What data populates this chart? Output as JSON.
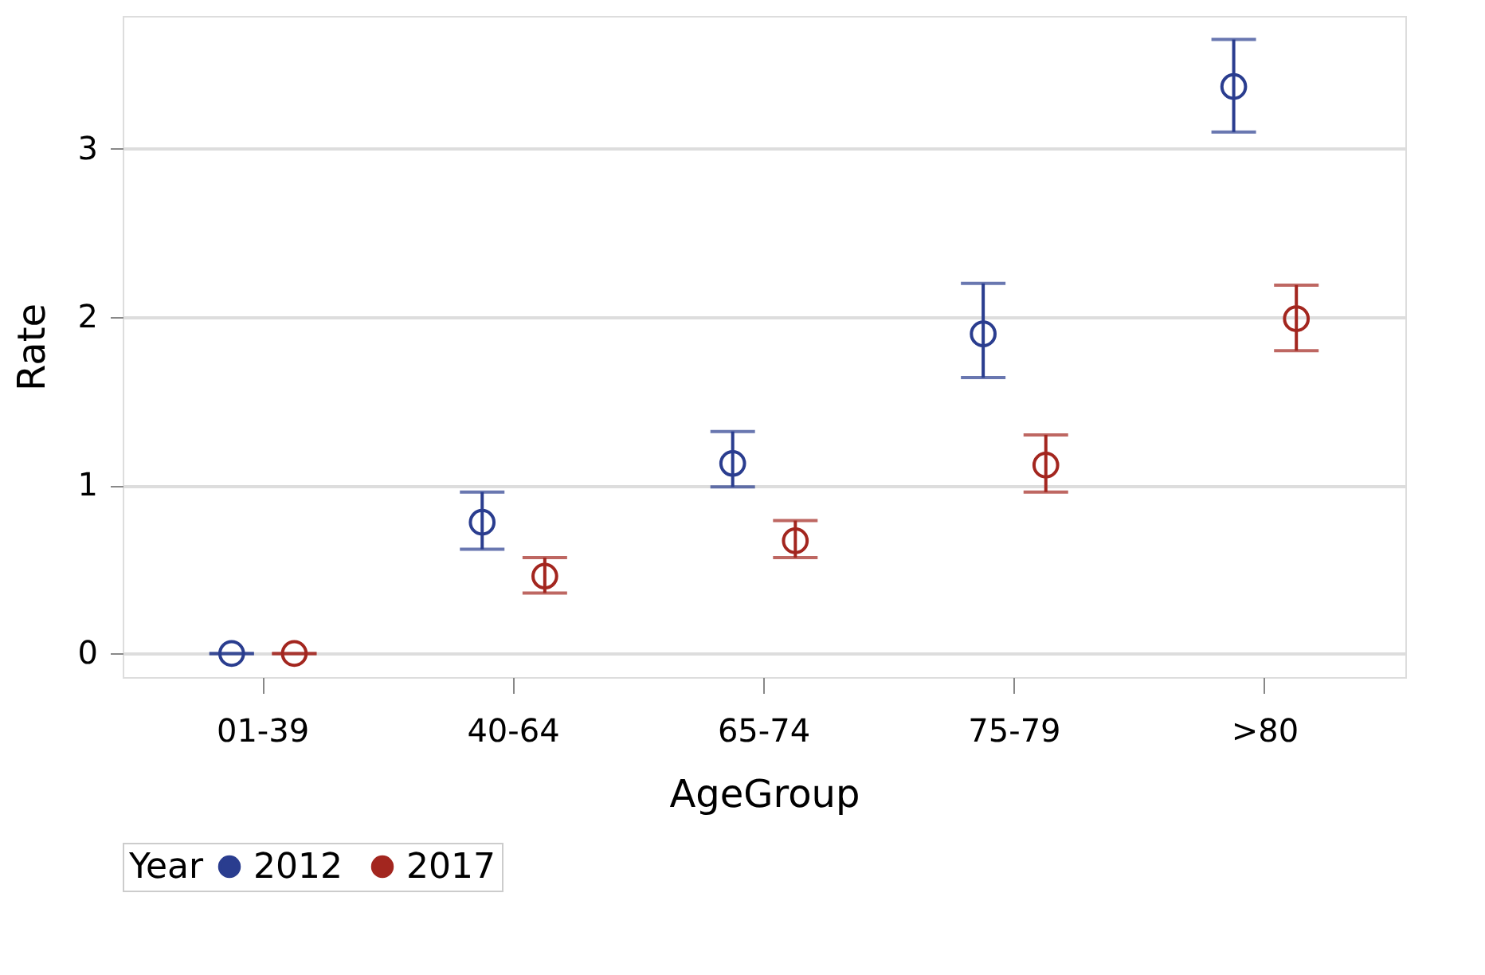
{
  "chart_data": {
    "type": "scatter",
    "xlabel": "AgeGroup",
    "ylabel": "Rate",
    "legend_title": "Year",
    "categories": [
      "01-39",
      "40-64",
      "65-74",
      "75-79",
      ">80"
    ],
    "series": [
      {
        "name": "2012",
        "color": "#2a3d8f",
        "values": [
          0,
          0.78,
          1.13,
          1.9,
          3.37
        ],
        "errors": [
          [
            0,
            0
          ],
          [
            0.62,
            0.96
          ],
          [
            0.99,
            1.32
          ],
          [
            1.64,
            2.2
          ],
          [
            3.1,
            3.65
          ]
        ]
      },
      {
        "name": "2017",
        "color": "#a3261f",
        "values": [
          0,
          0.46,
          0.67,
          1.12,
          1.99
        ],
        "errors": [
          [
            0,
            0
          ],
          [
            0.36,
            0.57
          ],
          [
            0.57,
            0.79
          ],
          [
            0.96,
            1.3
          ],
          [
            1.8,
            2.19
          ]
        ]
      }
    ],
    "ylim": [
      -0.14,
      3.79
    ],
    "yticks": [
      {
        "value": 0,
        "label": "0"
      },
      {
        "value": 1,
        "label": "1"
      },
      {
        "value": 2,
        "label": "2"
      },
      {
        "value": 3,
        "label": "3"
      }
    ],
    "grid": "y",
    "legend": "bottom",
    "marker": "circle"
  }
}
